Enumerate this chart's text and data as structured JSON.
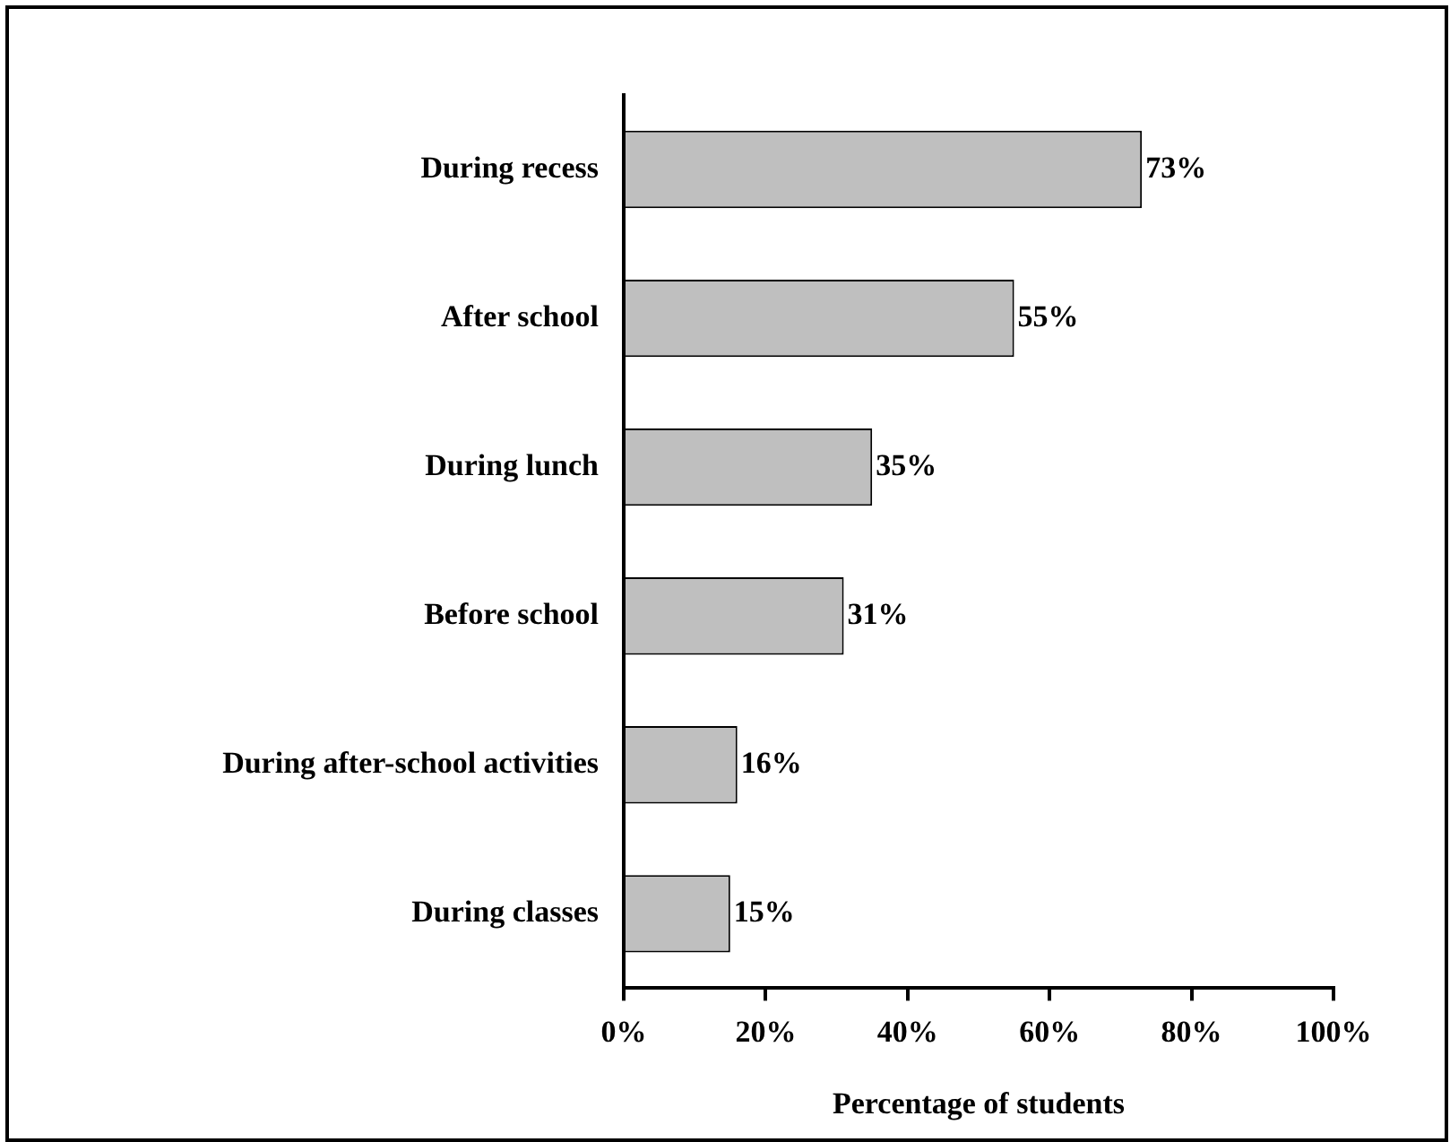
{
  "chart_data": {
    "type": "bar",
    "orientation": "horizontal",
    "xlabel": "Percentage of students",
    "categories": [
      "During recess",
      "After school",
      "During lunch",
      "Before school",
      "During after-school activities",
      "During classes"
    ],
    "values": [
      73,
      55,
      35,
      31,
      16,
      15
    ],
    "value_labels": [
      "73%",
      "55%",
      "35%",
      "31%",
      "16%",
      "15%"
    ],
    "color": "#bfbfbf",
    "xlim": [
      0,
      100
    ],
    "xticks": [
      {
        "value": 0,
        "label": "0%"
      },
      {
        "value": 20,
        "label": "20%"
      },
      {
        "value": 40,
        "label": "40%"
      },
      {
        "value": 60,
        "label": "60%"
      },
      {
        "value": 80,
        "label": "80%"
      },
      {
        "value": 100,
        "label": "100%"
      }
    ]
  }
}
